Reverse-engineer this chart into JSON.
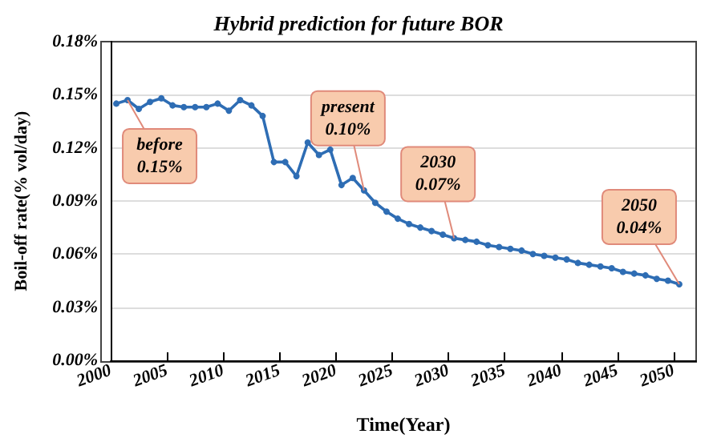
{
  "chart_data": {
    "type": "line",
    "title": "Hybrid prediction for future BOR",
    "xlabel": "Time(Year)",
    "ylabel": "Boil-off rate(% vol/day)",
    "x": [
      2000.5,
      2001.5,
      2002.5,
      2003.5,
      2004.5,
      2005.5,
      2006.5,
      2007.5,
      2008.5,
      2009.5,
      2010.5,
      2011.5,
      2012.5,
      2013.5,
      2014.5,
      2015.5,
      2016.5,
      2017.5,
      2018.5,
      2019.5,
      2020.5,
      2021.5,
      2022.5,
      2023.5,
      2024.5,
      2025.5,
      2026.5,
      2027.5,
      2028.5,
      2029.5,
      2030.5,
      2031.5,
      2032.5,
      2033.5,
      2034.5,
      2035.5,
      2036.5,
      2037.5,
      2038.5,
      2039.5,
      2040.5,
      2041.5,
      2042.5,
      2043.5,
      2044.5,
      2045.5,
      2046.5,
      2047.5,
      2048.5,
      2049.5,
      2050.5
    ],
    "series": [
      {
        "color": "#2e6db4",
        "values": [
          0.145,
          0.147,
          0.142,
          0.146,
          0.148,
          0.144,
          0.143,
          0.143,
          0.143,
          0.145,
          0.141,
          0.147,
          0.144,
          0.138,
          0.112,
          0.112,
          0.104,
          0.123,
          0.116,
          0.119,
          0.099,
          0.103,
          0.096,
          0.089,
          0.084,
          0.08,
          0.077,
          0.075,
          0.073,
          0.071,
          0.069,
          0.068,
          0.067,
          0.065,
          0.064,
          0.063,
          0.062,
          0.06,
          0.059,
          0.058,
          0.057,
          0.055,
          0.054,
          0.053,
          0.052,
          0.05,
          0.049,
          0.048,
          0.046,
          0.045,
          0.043
        ]
      }
    ],
    "xlim": [
      2000,
      2052
    ],
    "xticks": [
      2000,
      2005,
      2010,
      2015,
      2020,
      2025,
      2030,
      2035,
      2040,
      2045,
      2050
    ],
    "ylim": [
      0,
      0.18
    ],
    "yticks": [
      {
        "value": 0,
        "label": "0.00%"
      },
      {
        "value": 0.03,
        "label": "0.03%"
      },
      {
        "value": 0.06,
        "label": "0.06%"
      },
      {
        "value": 0.09,
        "label": "0.09%"
      },
      {
        "value": 0.12,
        "label": "0.12%"
      },
      {
        "value": 0.15,
        "label": "0.15%"
      },
      {
        "value": 0.18,
        "label": "0.18%"
      }
    ],
    "grid": "y",
    "marker": "circle",
    "line_style": "solid",
    "annotations": [
      {
        "text": "before\n0.15%",
        "x": 2001.5,
        "y": 0.147
      },
      {
        "text": "present\n0.10%",
        "x": 2022.5,
        "y": 0.096
      },
      {
        "text": "2030\n0.07%",
        "x": 2030.5,
        "y": 0.069
      },
      {
        "text": "2050\n0.04%",
        "x": 2050.5,
        "y": 0.043
      }
    ]
  }
}
